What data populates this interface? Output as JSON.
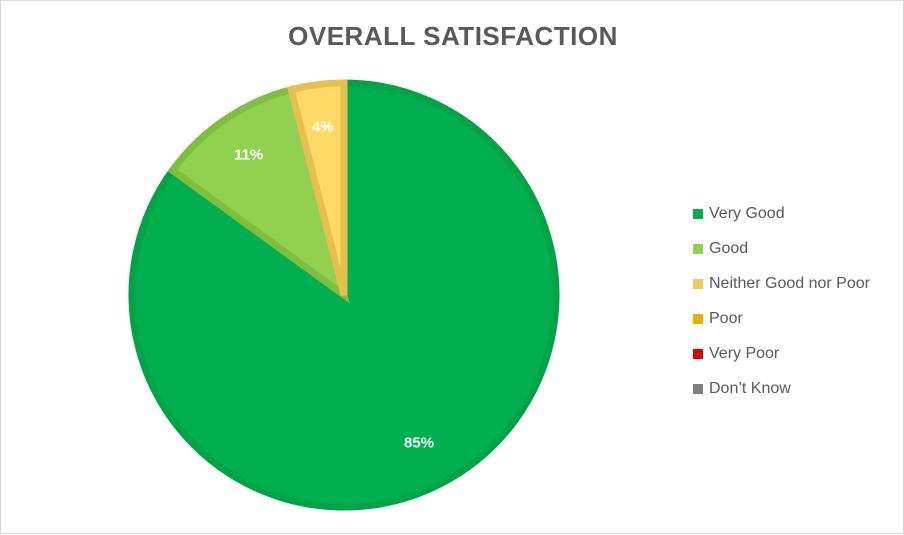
{
  "chart_data": {
    "type": "pie",
    "title": "OVERALL SATISFACTION",
    "categories": [
      "Very Good",
      "Good",
      "Neither Good nor Poor",
      "Poor",
      "Very Poor",
      "Don’t Know"
    ],
    "values": [
      85,
      11,
      4,
      0,
      0,
      0
    ],
    "labels": [
      "85%",
      "11%",
      "4%",
      "",
      "",
      ""
    ],
    "colors": [
      "#00b050",
      "#92d050",
      "#ffd966",
      "#e6b000",
      "#e00000",
      "#7f7f7f"
    ],
    "border_colors": [
      "#00a447",
      "#7fbf3f",
      "#e6c04f",
      "#e6b000",
      "#e00000",
      "#7f7f7f"
    ],
    "legend_swatch_colors": [
      "#00b050",
      "#92d050",
      "#f2c75c",
      "#e6b000",
      "#e00000",
      "#7f7f7f"
    ],
    "legend_position": "right"
  }
}
